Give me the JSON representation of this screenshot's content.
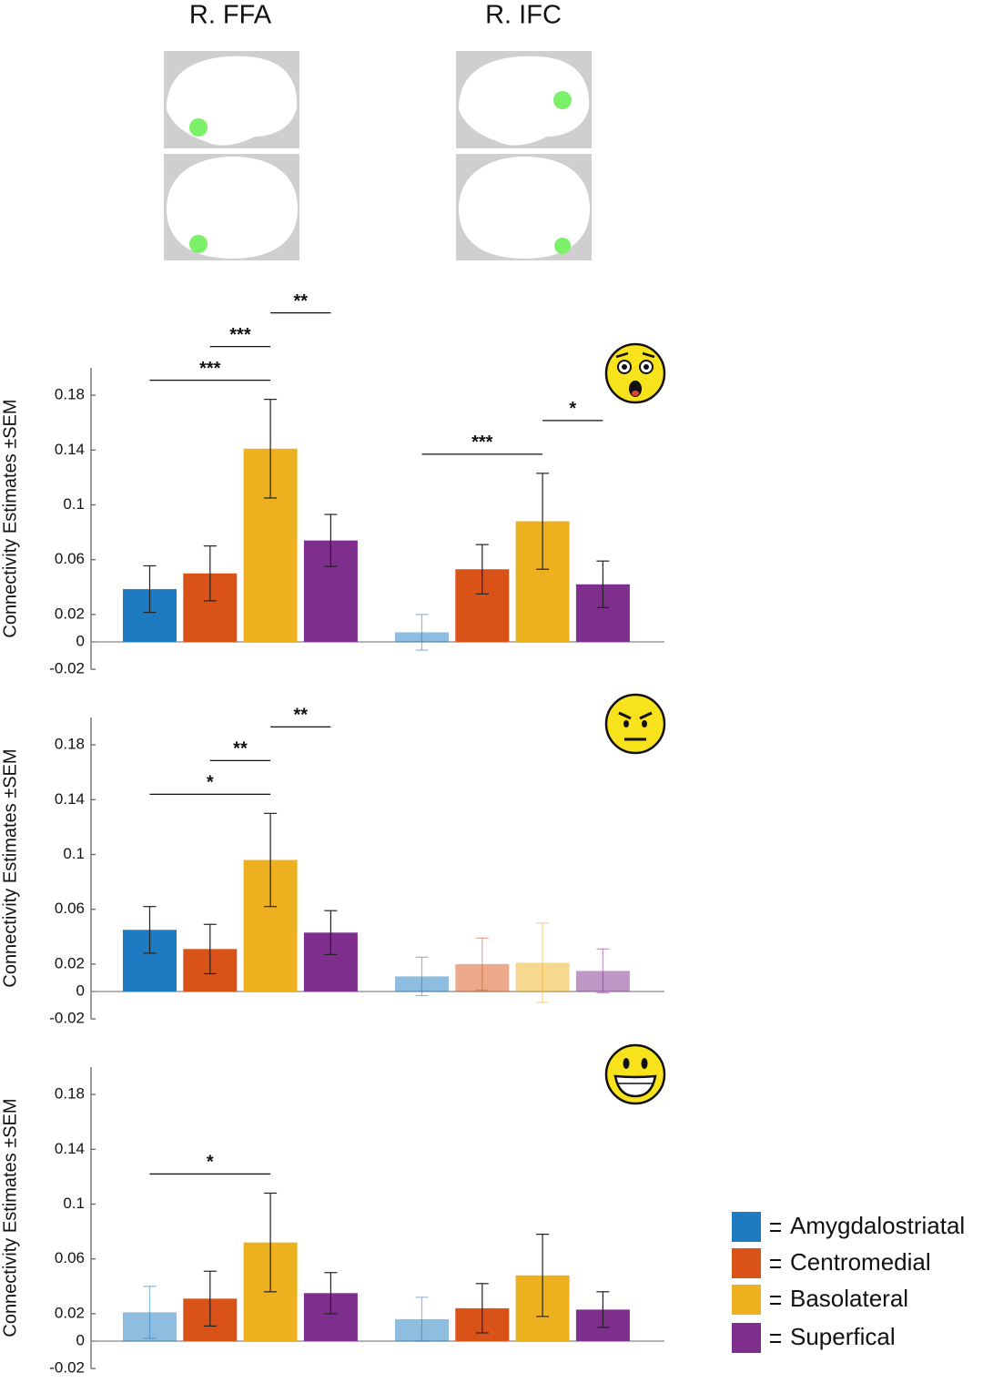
{
  "chart_data": {
    "type": "bar",
    "categories": [
      "R. FFA",
      "R. IFC"
    ],
    "y_label": "Connectivity Estimates ±SEM",
    "ylim": [
      -0.02,
      0.2
    ],
    "yticks": [
      -0.02,
      0,
      0.02,
      0.06,
      0.1,
      0.14,
      0.18
    ],
    "series": [
      {
        "name": "Amygdalostriatal",
        "color": "#1f7bc1"
      },
      {
        "name": "Centromedial",
        "color": "#d95319"
      },
      {
        "name": "Basolateral",
        "color": "#edb120"
      },
      {
        "name": "Superfical",
        "color": "#7e2f8e"
      }
    ],
    "panels": [
      {
        "values": [
          [
            0.0385,
            0.05,
            0.141,
            0.074
          ],
          [
            0.007,
            0.053,
            0.088,
            0.042
          ]
        ],
        "errors": [
          [
            0.017,
            0.02,
            0.036,
            0.019
          ],
          [
            0.013,
            0.018,
            0.035,
            0.017
          ]
        ],
        "faded": [
          [
            false,
            false,
            false,
            false
          ],
          [
            true,
            false,
            false,
            false
          ]
        ],
        "brackets": [
          {
            "label": "***",
            "group": 0,
            "from": 0,
            "to": 2
          },
          {
            "label": "***",
            "group": 0,
            "from": 1,
            "to": 2
          },
          {
            "label": "**",
            "group": 0,
            "from": 2,
            "to": 3
          },
          {
            "label": "***",
            "group": 1,
            "from": 0,
            "to": 2
          },
          {
            "label": "*",
            "group": 1,
            "from": 2,
            "to": 3
          }
        ]
      },
      {
        "values": [
          [
            0.045,
            0.031,
            0.096,
            0.043
          ],
          [
            0.011,
            0.02,
            0.021,
            0.015
          ]
        ],
        "errors": [
          [
            0.017,
            0.018,
            0.034,
            0.016
          ],
          [
            0.014,
            0.019,
            0.029,
            0.016
          ]
        ],
        "faded": [
          [
            false,
            false,
            false,
            false
          ],
          [
            true,
            true,
            true,
            true
          ]
        ],
        "brackets": [
          {
            "label": "*",
            "group": 0,
            "from": 0,
            "to": 2
          },
          {
            "label": "**",
            "group": 0,
            "from": 1,
            "to": 2
          },
          {
            "label": "**",
            "group": 0,
            "from": 2,
            "to": 3
          }
        ]
      },
      {
        "values": [
          [
            0.021,
            0.031,
            0.072,
            0.035
          ],
          [
            0.016,
            0.024,
            0.048,
            0.023
          ]
        ],
        "errors": [
          [
            0.019,
            0.02,
            0.036,
            0.015
          ],
          [
            0.016,
            0.018,
            0.03,
            0.013
          ]
        ],
        "faded": [
          [
            true,
            false,
            false,
            false
          ],
          [
            true,
            false,
            false,
            false
          ]
        ],
        "brackets": [
          {
            "label": "*",
            "group": 0,
            "from": 0,
            "to": 2
          }
        ]
      }
    ]
  }
}
